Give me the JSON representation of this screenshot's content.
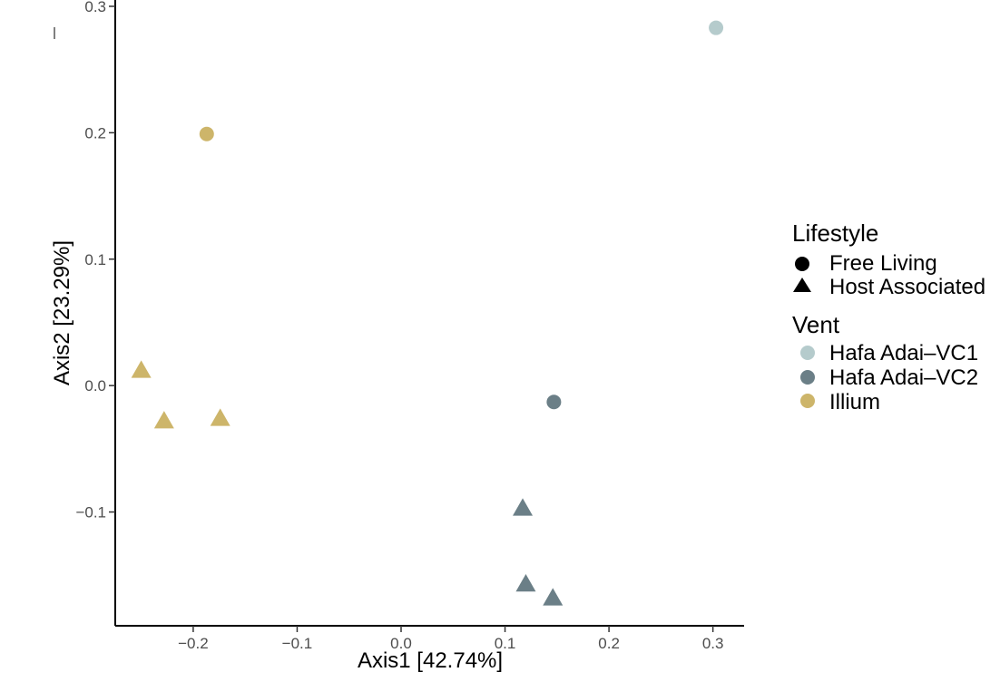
{
  "chart_data": {
    "type": "scatter",
    "xlabel": "Axis1 [42.74%]",
    "ylabel": "Axis2 [23.29%]",
    "xlim": [
      -0.275,
      0.33
    ],
    "ylim": [
      -0.19,
      0.305
    ],
    "x_ticks": [
      -0.2,
      -0.1,
      0.0,
      0.1,
      0.2,
      0.3
    ],
    "x_tick_labels": [
      "−0.2",
      "−0.1",
      "0.0",
      "0.1",
      "0.2",
      "0.3"
    ],
    "y_ticks": [
      -0.1,
      0.0,
      0.1,
      0.2,
      0.3
    ],
    "y_tick_labels": [
      "−0.1",
      "0.0",
      "0.1",
      "0.2",
      "0.3"
    ],
    "grid": false,
    "legend_position": "right",
    "legends": [
      {
        "title": "Lifestyle",
        "items": [
          {
            "label": "Free Living",
            "shape": "circle"
          },
          {
            "label": "Host Associated",
            "shape": "triangle"
          }
        ]
      },
      {
        "title": "Vent",
        "items": [
          {
            "label": "Hafa Adai–VC1",
            "color": "#b5cbcc"
          },
          {
            "label": "Hafa Adai–VC2",
            "color": "#6b7f87"
          },
          {
            "label": "Illium",
            "color": "#cdb56a"
          }
        ]
      }
    ],
    "points": [
      {
        "x": 0.303,
        "y": 0.283,
        "lifestyle": "Free Living",
        "vent": "Hafa Adai–VC1"
      },
      {
        "x": -0.187,
        "y": 0.199,
        "lifestyle": "Free Living",
        "vent": "Illium"
      },
      {
        "x": 0.147,
        "y": -0.013,
        "lifestyle": "Free Living",
        "vent": "Hafa Adai–VC2"
      },
      {
        "x": -0.25,
        "y": 0.012,
        "lifestyle": "Host Associated",
        "vent": "Illium"
      },
      {
        "x": -0.228,
        "y": -0.028,
        "lifestyle": "Host Associated",
        "vent": "Illium"
      },
      {
        "x": -0.174,
        "y": -0.026,
        "lifestyle": "Host Associated",
        "vent": "Illium"
      },
      {
        "x": 0.117,
        "y": -0.097,
        "lifestyle": "Host Associated",
        "vent": "Hafa Adai–VC2"
      },
      {
        "x": 0.12,
        "y": -0.157,
        "lifestyle": "Host Associated",
        "vent": "Hafa Adai–VC2"
      },
      {
        "x": 0.146,
        "y": -0.168,
        "lifestyle": "Host Associated",
        "vent": "Hafa Adai–VC2"
      }
    ]
  }
}
